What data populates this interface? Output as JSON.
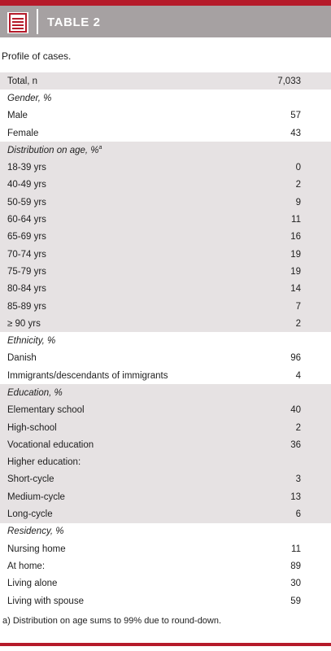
{
  "header": {
    "title": "TABLE 2"
  },
  "caption": "Profile of cases.",
  "rows": [
    {
      "label": "Total, n",
      "value": "7,033",
      "italic": false,
      "shade": true
    },
    {
      "label": "Gender, %",
      "value": "",
      "italic": true,
      "shade": false
    },
    {
      "label": "Male",
      "value": "57",
      "italic": false,
      "shade": false
    },
    {
      "label": "Female",
      "value": "43",
      "italic": false,
      "shade": false
    },
    {
      "label": "Distribution on age, %",
      "sup": "a",
      "value": "",
      "italic": true,
      "shade": true
    },
    {
      "label": "18-39 yrs",
      "value": "0",
      "italic": false,
      "shade": true
    },
    {
      "label": "40-49 yrs",
      "value": "2",
      "italic": false,
      "shade": true
    },
    {
      "label": "50-59 yrs",
      "value": "9",
      "italic": false,
      "shade": true
    },
    {
      "label": "60-64 yrs",
      "value": "11",
      "italic": false,
      "shade": true
    },
    {
      "label": "65-69 yrs",
      "value": "16",
      "italic": false,
      "shade": true
    },
    {
      "label": "70-74 yrs",
      "value": "19",
      "italic": false,
      "shade": true
    },
    {
      "label": "75-79 yrs",
      "value": "19",
      "italic": false,
      "shade": true
    },
    {
      "label": "80-84 yrs",
      "value": "14",
      "italic": false,
      "shade": true
    },
    {
      "label": "85-89 yrs",
      "value": "7",
      "italic": false,
      "shade": true
    },
    {
      "label": "≥ 90 yrs",
      "value": "2",
      "italic": false,
      "shade": true
    },
    {
      "label": "Ethnicity, %",
      "value": "",
      "italic": true,
      "shade": false
    },
    {
      "label": "Danish",
      "value": "96",
      "italic": false,
      "shade": false
    },
    {
      "label": "Immigrants/descendants of immigrants",
      "value": "4",
      "italic": false,
      "shade": false
    },
    {
      "label": "Education, %",
      "value": "",
      "italic": true,
      "shade": true
    },
    {
      "label": "Elementary school",
      "value": "40",
      "italic": false,
      "shade": true
    },
    {
      "label": "High-school",
      "value": "2",
      "italic": false,
      "shade": true
    },
    {
      "label": "Vocational education",
      "value": "36",
      "italic": false,
      "shade": true
    },
    {
      "label": "Higher education:",
      "value": "",
      "italic": false,
      "shade": true
    },
    {
      "label": "Short-cycle",
      "value": "3",
      "italic": false,
      "shade": true
    },
    {
      "label": "Medium-cycle",
      "value": "13",
      "italic": false,
      "shade": true
    },
    {
      "label": "Long-cycle",
      "value": "6",
      "italic": false,
      "shade": true
    },
    {
      "label": "Residency, %",
      "value": "",
      "italic": true,
      "shade": false
    },
    {
      "label": "Nursing home",
      "value": "11",
      "italic": false,
      "shade": false
    },
    {
      "label": "At home:",
      "value": "89",
      "italic": false,
      "shade": false
    },
    {
      "label": "Living alone",
      "value": "30",
      "italic": false,
      "shade": false
    },
    {
      "label": "Living with spouse",
      "value": "59",
      "italic": false,
      "shade": false
    }
  ],
  "footnote": "a) Distribution on age sums to 99% due to round-down.",
  "colors": {
    "accent": "#b51a2a",
    "header_bg": "#a6a1a2",
    "shade": "#e6e2e3"
  },
  "icons": {
    "header_icon": "document-list-icon"
  }
}
